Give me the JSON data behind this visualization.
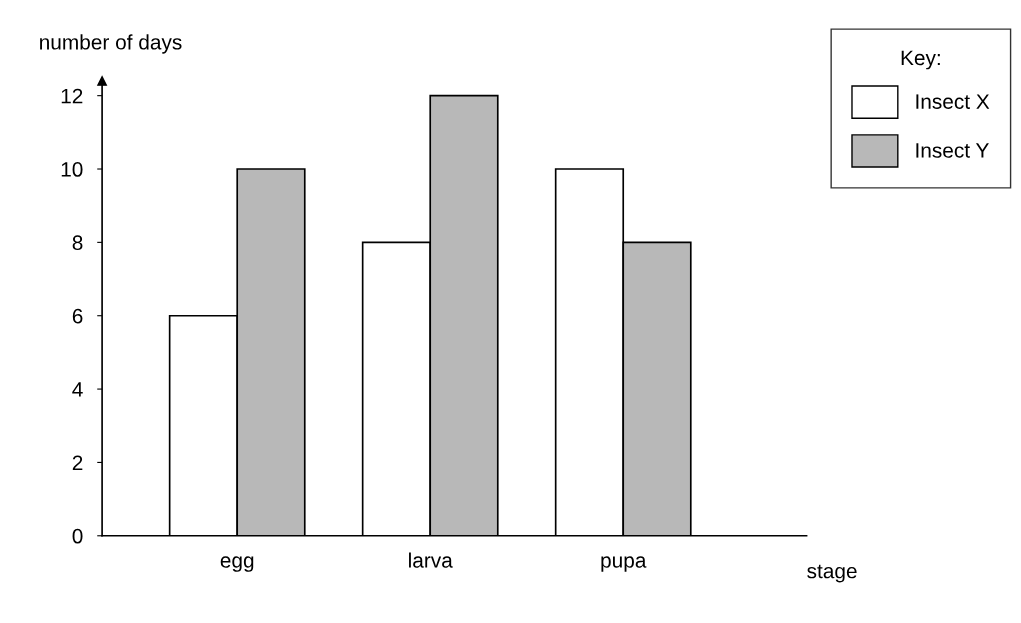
{
  "chart_data": {
    "type": "bar",
    "xlabel": "stage",
    "ylabel": "number of days",
    "legend_title": "Key:",
    "categories": [
      "egg",
      "larva",
      "pupa"
    ],
    "series": [
      {
        "name": "Insect X",
        "color": "#ffffff",
        "values": [
          6,
          8,
          10
        ]
      },
      {
        "name": "Insect Y",
        "color": "#b8b8b8",
        "values": [
          10,
          12,
          8
        ]
      }
    ],
    "ylim": [
      0,
      12.4
    ],
    "yticks": [
      0,
      2,
      4,
      6,
      8,
      10,
      12
    ],
    "grid": false,
    "legend": "top right"
  }
}
